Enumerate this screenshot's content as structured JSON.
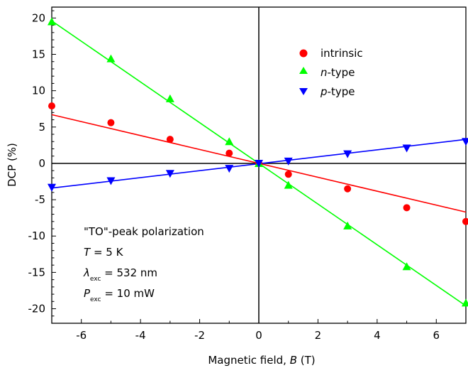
{
  "chart_data": {
    "type": "scatter",
    "xlabel": "Magnetic field, B (T)",
    "xlabel_parts": {
      "pre": "Magnetic field, ",
      "var": "B",
      "post": " (T)"
    },
    "ylabel": "DCP (%)",
    "xlim": [
      -7,
      7
    ],
    "ylim": [
      -22,
      21.5
    ],
    "x_ticks": [
      -6,
      -4,
      -2,
      0,
      2,
      4,
      6
    ],
    "y_ticks": [
      20,
      15,
      10,
      5,
      0,
      -5,
      -10,
      -15,
      -20
    ],
    "zero_lines": true,
    "legend_position": "top-right",
    "series": [
      {
        "name": "intrinsic",
        "name_parts": {
          "italic": "",
          "plain": "intrinsic"
        },
        "marker": "circle",
        "color": "#ff0000",
        "x": [
          -7,
          -5,
          -3,
          -1,
          0,
          1,
          3,
          5,
          7
        ],
        "y": [
          7.9,
          5.6,
          3.3,
          1.4,
          0,
          -1.5,
          -3.5,
          -6.1,
          -8.0
        ],
        "fit": {
          "x": [
            -7,
            7
          ],
          "y": [
            6.7,
            -6.7
          ]
        }
      },
      {
        "name": "n-type",
        "name_parts": {
          "italic": "n",
          "plain": "-type"
        },
        "marker": "triangle-up",
        "color": "#00ff00",
        "x": [
          -7,
          -5,
          -3,
          -1,
          0,
          1,
          3,
          5,
          7
        ],
        "y": [
          19.5,
          14.4,
          8.9,
          3.0,
          0,
          -3.0,
          -8.6,
          -14.2,
          -19.2
        ],
        "fit": {
          "x": [
            -7,
            7
          ],
          "y": [
            19.6,
            -19.6
          ]
        }
      },
      {
        "name": "p-type",
        "name_parts": {
          "italic": "p",
          "plain": "-type"
        },
        "marker": "triangle-down",
        "color": "#0000ff",
        "x": [
          -7,
          -5,
          -3,
          -1,
          0,
          1,
          3,
          5,
          7
        ],
        "y": [
          -3.3,
          -2.4,
          -1.4,
          -0.7,
          0,
          0.3,
          1.3,
          2.1,
          3.0
        ],
        "fit": {
          "x": [
            -7,
            7
          ],
          "y": [
            -3.4,
            3.3
          ]
        }
      }
    ],
    "annotations": {
      "title": "\"TO\"-peak polarization",
      "temp": {
        "var": "T",
        "value": " = 5 K"
      },
      "lambda": {
        "var": "λ",
        "sub": "exc",
        "value": " = 532 nm"
      },
      "power": {
        "var": "P",
        "sub": "exc",
        "value": " = 10 mW"
      }
    }
  }
}
